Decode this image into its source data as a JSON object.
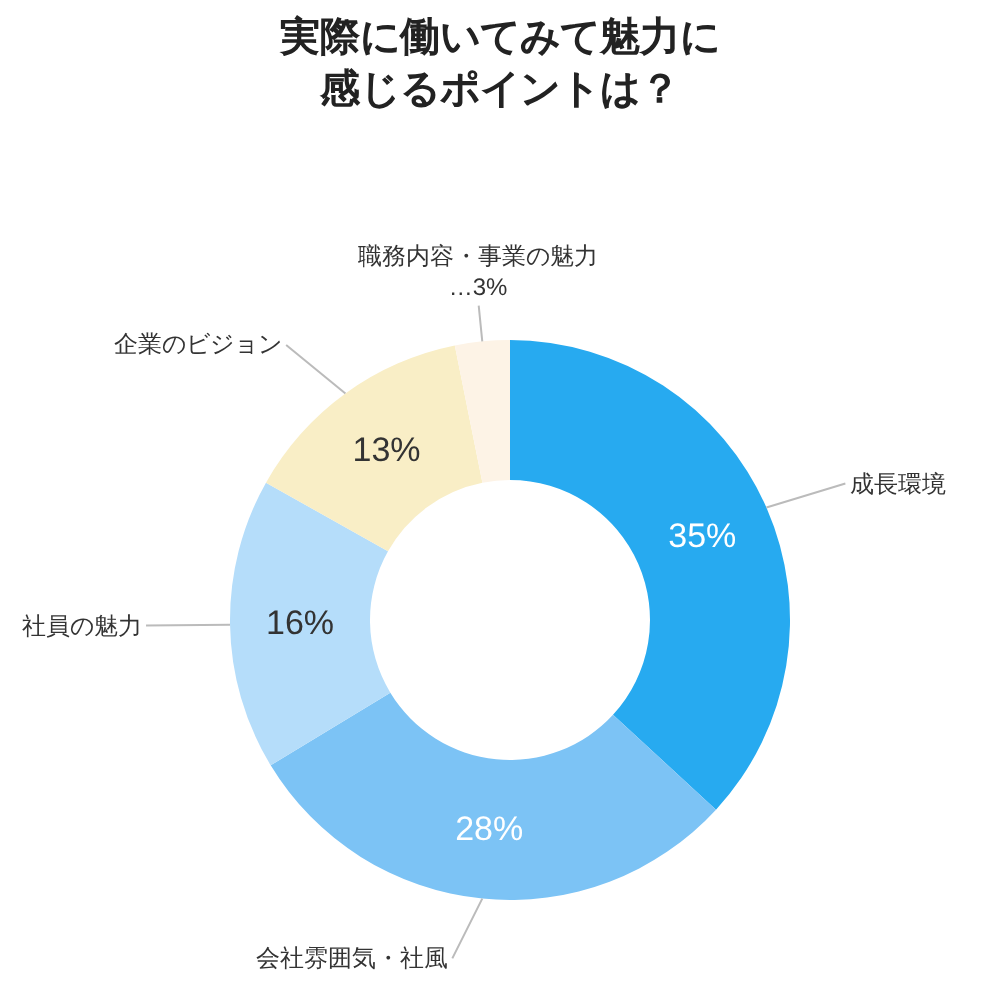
{
  "chart_data": {
    "type": "donut",
    "title": "実際に働いてみて魅力に感じるポイントは？",
    "categories": [
      "成長環境",
      "会社雰囲気・社風",
      "社員の魅力",
      "企業のビジョン",
      "職務内容・事業の魅力"
    ],
    "values": [
      35,
      28,
      16,
      13,
      3
    ],
    "colors": [
      "#27aaf0",
      "#7cc3f5",
      "#b5ddfa",
      "#f9eec6",
      "#fdf3e6"
    ],
    "value_labels": [
      "35%",
      "28%",
      "16%",
      "13%",
      "…3%"
    ],
    "legend": false
  }
}
